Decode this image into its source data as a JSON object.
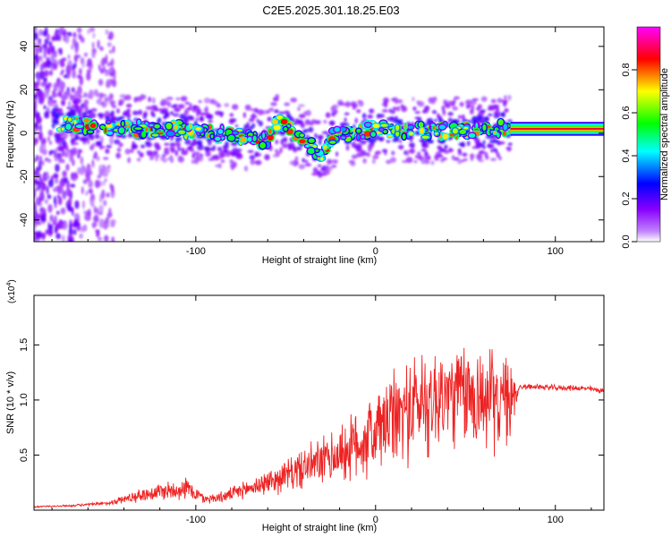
{
  "title": "C2E5.2025.301.18.25.E03",
  "colors": {
    "signal": "#ee2222",
    "frame": "#000000",
    "background": "#ffffff"
  },
  "chart_data": [
    {
      "type": "heatmap",
      "name": "spectrogram",
      "xlabel": "Height of straight line (km)",
      "ylabel": "Frequency (Hz)",
      "xlim": [
        -190,
        127
      ],
      "ylim": [
        -50,
        49
      ],
      "x_ticks": [
        -100,
        0,
        100
      ],
      "y_ticks": [
        -40,
        -20,
        0,
        20,
        40
      ],
      "colorbar": {
        "label": "Normalized spectral amplitude",
        "range": [
          0,
          1
        ],
        "ticks": [
          "0.0",
          "0.2",
          "0.4",
          "0.6",
          "0.8"
        ],
        "colormap": [
          "#ffffff",
          "#8800ff",
          "#0000ff",
          "#00ffff",
          "#00ff00",
          "#ffff00",
          "#ff0000",
          "#ff00ff"
        ]
      },
      "ridge": {
        "x": [
          -190,
          -170,
          -150,
          -130,
          -110,
          -100,
          -90,
          -80,
          -70,
          -60,
          -55,
          -50,
          -45,
          -40,
          -35,
          -30,
          -25,
          -20,
          -10,
          0,
          20,
          40,
          60,
          80,
          100,
          127
        ],
        "y": [
          5,
          4,
          3,
          2,
          2,
          1,
          0,
          -1,
          -2,
          -4,
          5,
          3,
          0,
          -3,
          -6,
          -10,
          -2,
          0,
          0,
          2,
          1,
          1,
          2,
          2,
          2,
          2
        ]
      }
    },
    {
      "type": "line",
      "name": "snr",
      "xlabel": "Height of straight line (km)",
      "ylabel": "SNR (10 * v/v)",
      "y_multiplier_label": "(x10",
      "y_multiplier_exp": "4",
      "xlim": [
        -190,
        127
      ],
      "ylim": [
        0,
        1.95
      ],
      "x_ticks": [
        -100,
        0,
        100
      ],
      "y_ticks": [
        0.5,
        1.0,
        1.5
      ],
      "series": [
        {
          "name": "SNR",
          "x": [
            -190,
            -170,
            -150,
            -135,
            -120,
            -105,
            -95,
            -85,
            -70,
            -55,
            -40,
            -25,
            -15,
            -5,
            5,
            15,
            25,
            35,
            45,
            55,
            65,
            75,
            80,
            90,
            100,
            110,
            120,
            127
          ],
          "y": [
            0.03,
            0.04,
            0.06,
            0.12,
            0.17,
            0.2,
            0.1,
            0.12,
            0.2,
            0.28,
            0.38,
            0.47,
            0.55,
            0.65,
            0.77,
            0.88,
            0.98,
            1.02,
            1.05,
            1.03,
            1.0,
            0.98,
            1.12,
            1.12,
            1.11,
            1.11,
            1.1,
            1.08
          ],
          "amp": [
            0.01,
            0.01,
            0.02,
            0.06,
            0.1,
            0.12,
            0.05,
            0.06,
            0.1,
            0.15,
            0.22,
            0.28,
            0.35,
            0.45,
            0.5,
            0.55,
            0.6,
            0.6,
            0.55,
            0.6,
            0.55,
            0.45,
            0.03,
            0.03,
            0.03,
            0.03,
            0.03,
            0.03
          ]
        }
      ]
    }
  ]
}
